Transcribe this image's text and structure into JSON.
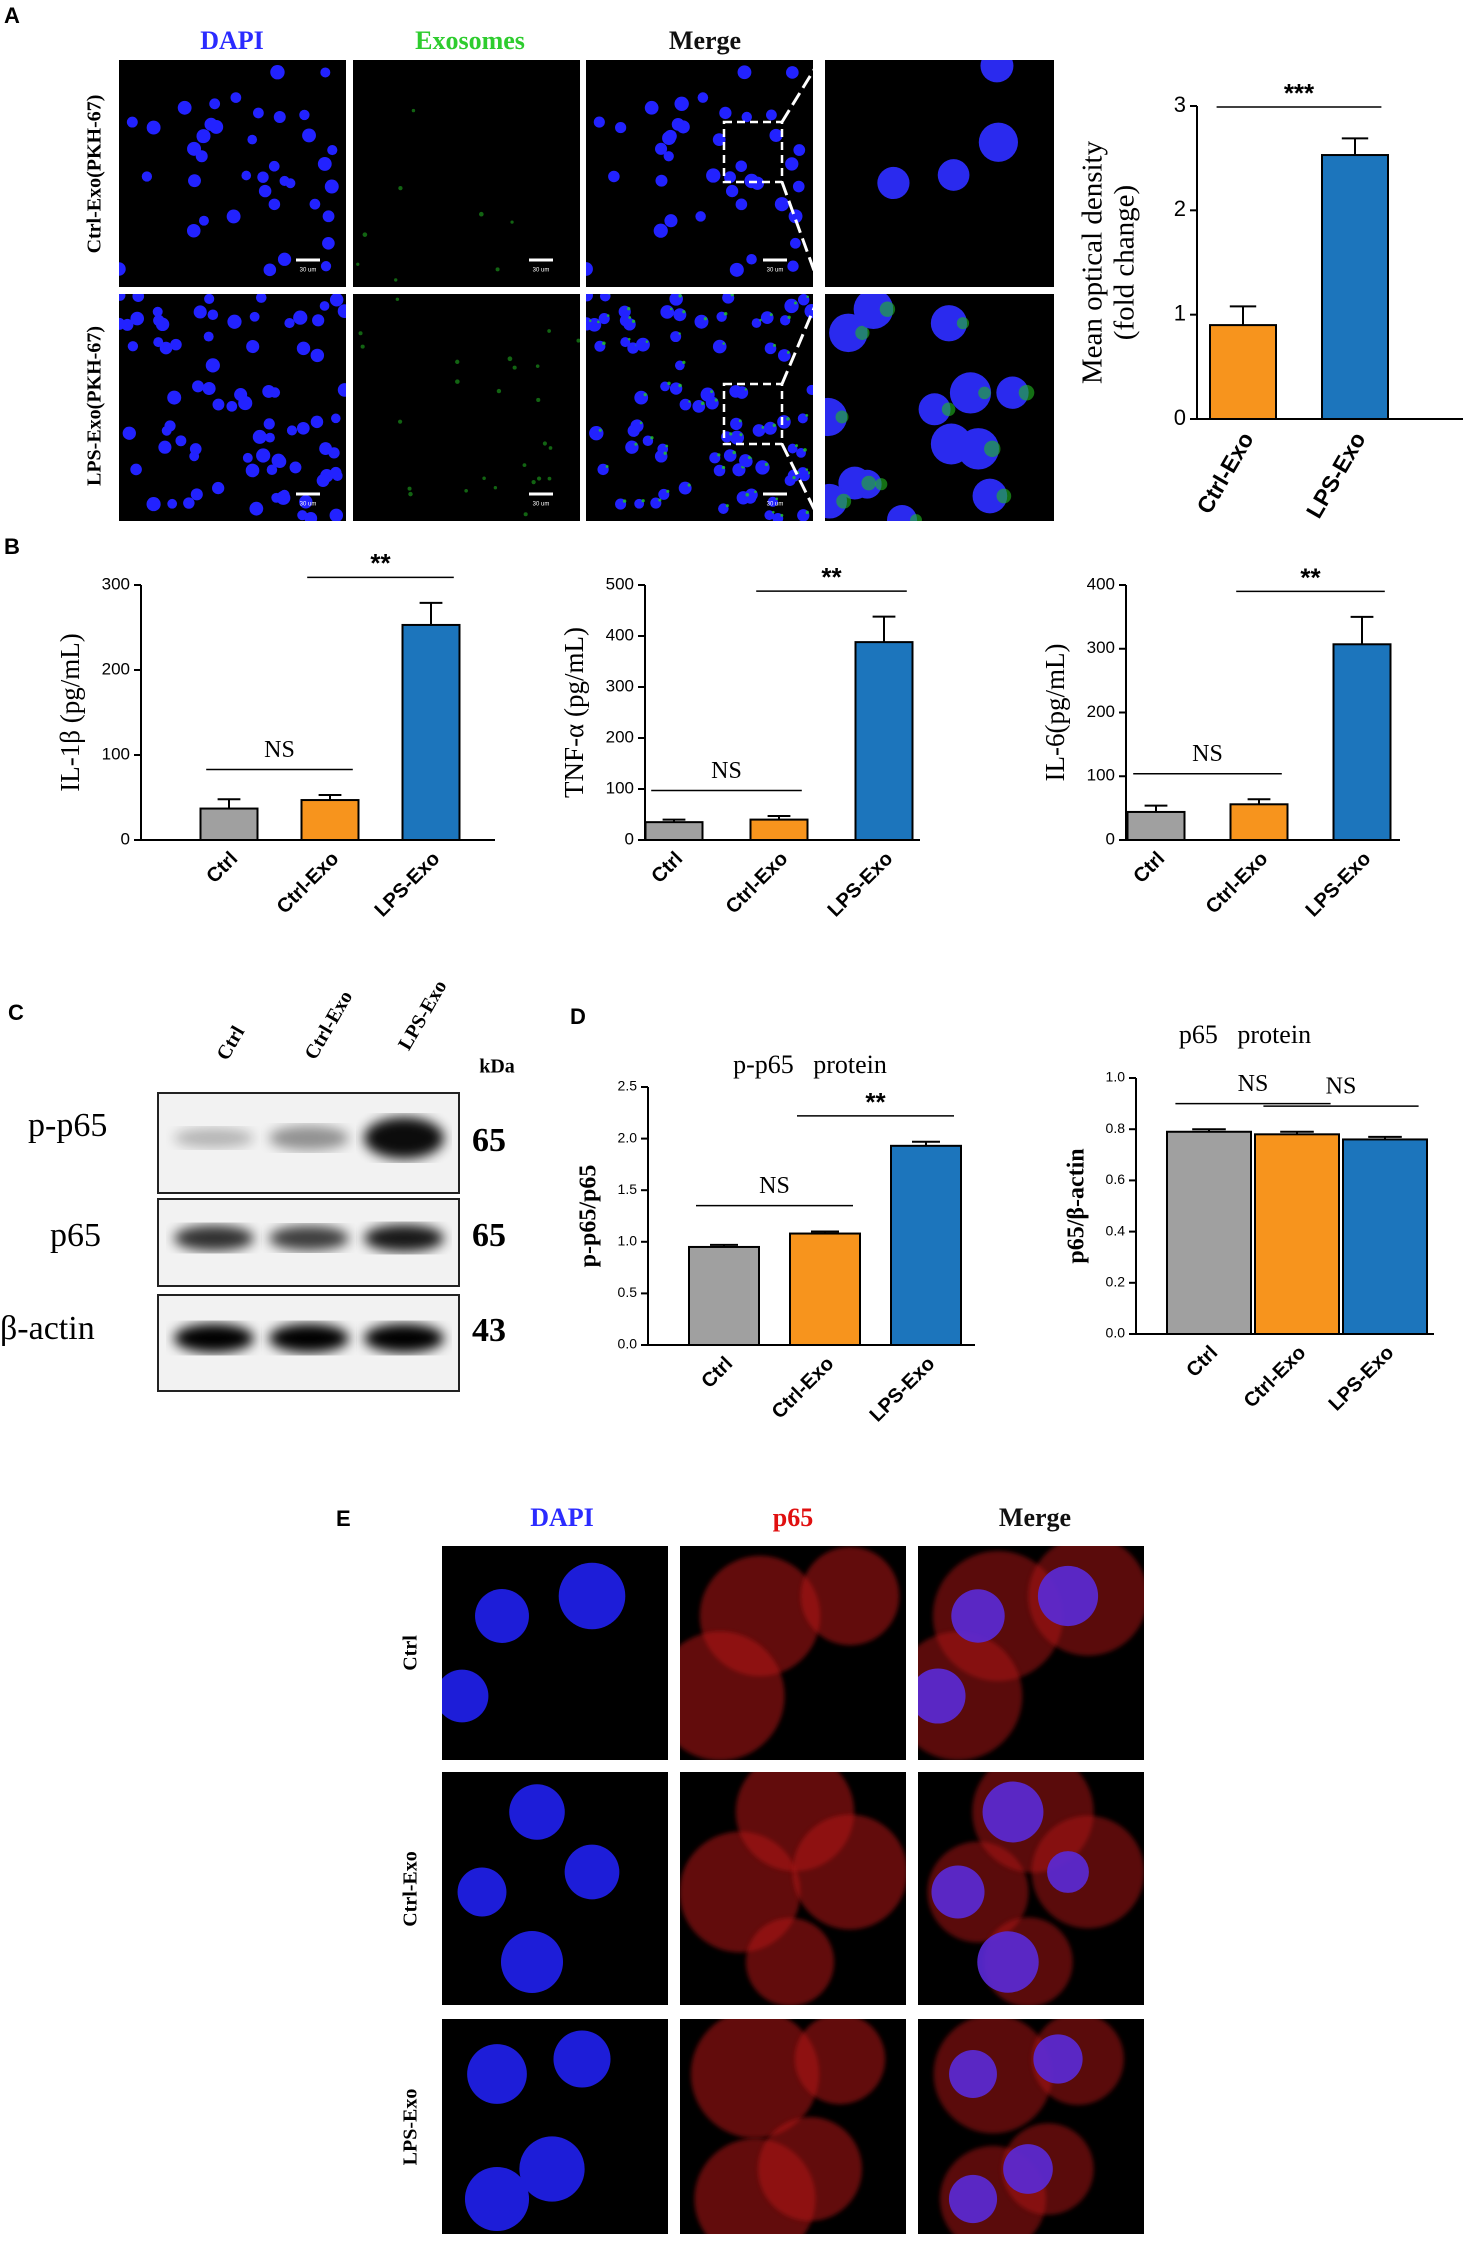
{
  "panel_labels": [
    "A",
    "B",
    "C",
    "D",
    "E"
  ],
  "panel_a": {
    "column_headers": [
      "DAPI",
      "Exosomes",
      "Merge"
    ],
    "row_labels": [
      "Ctrl-Exo(PKH-67)",
      "LPS-Exo(PKH-67)"
    ],
    "scale_bar_label": "30 um"
  },
  "panel_c": {
    "lanes": [
      "Ctrl",
      "Ctrl-Exo",
      "LPS-Exo"
    ],
    "unit_header": "kDa",
    "rows": [
      {
        "label": "p-p65",
        "kda": 65
      },
      {
        "label": "p65",
        "kda": 65
      },
      {
        "label": "β-actin",
        "kda": 43
      }
    ]
  },
  "panel_e": {
    "column_headers": [
      "DAPI",
      "p65",
      "Merge"
    ],
    "row_labels": [
      "Ctrl",
      "Ctrl-Exo",
      "LPS-Exo"
    ]
  },
  "chart_data": [
    {
      "type": "bar",
      "ylabel": [
        "Mean optical density",
        "(fold change)"
      ],
      "categories": [
        "Ctrl-Exo",
        "LPS-Exo"
      ],
      "values": [
        0.9,
        2.53
      ],
      "errors": [
        0.18,
        0.16
      ],
      "colors": [
        "#f7941d",
        "#1c75bc"
      ],
      "ylim": [
        0,
        3
      ],
      "yticks": [
        0,
        1,
        2,
        3
      ],
      "annotations": [
        {
          "text": "***",
          "span": [
            0,
            1
          ]
        }
      ]
    },
    {
      "type": "bar",
      "ylabel": "IL-1β (pg/mL)",
      "categories": [
        "Ctrl",
        "Ctrl-Exo",
        "LPS-Exo"
      ],
      "values": [
        37,
        47,
        253
      ],
      "errors": [
        11,
        6,
        26
      ],
      "colors": [
        "#a0a0a0",
        "#f7941d",
        "#1c75bc"
      ],
      "ylim": [
        0,
        300
      ],
      "yticks": [
        0,
        100,
        200,
        300
      ],
      "annotations": [
        {
          "text": "NS",
          "span": [
            0,
            1
          ]
        },
        {
          "text": "**",
          "span": [
            1,
            2
          ]
        }
      ]
    },
    {
      "type": "bar",
      "ylabel": "TNF-α (pg/mL)",
      "categories": [
        "Ctrl",
        "Ctrl-Exo",
        "LPS-Exo"
      ],
      "values": [
        35,
        40,
        388
      ],
      "errors": [
        5,
        7,
        50
      ],
      "colors": [
        "#a0a0a0",
        "#f7941d",
        "#1c75bc"
      ],
      "ylim": [
        0,
        500
      ],
      "yticks": [
        0,
        100,
        200,
        300,
        400,
        500
      ],
      "annotations": [
        {
          "text": "NS",
          "span": [
            0,
            1
          ]
        },
        {
          "text": "**",
          "span": [
            1,
            2
          ]
        }
      ]
    },
    {
      "type": "bar",
      "ylabel": "IL-6(pg/mL)",
      "categories": [
        "Ctrl",
        "Ctrl-Exo",
        "LPS-Exo"
      ],
      "values": [
        44,
        56,
        307
      ],
      "errors": [
        10,
        8,
        43
      ],
      "colors": [
        "#a0a0a0",
        "#f7941d",
        "#1c75bc"
      ],
      "ylim": [
        0,
        400
      ],
      "yticks": [
        0,
        100,
        200,
        300,
        400
      ],
      "annotations": [
        {
          "text": "NS",
          "span": [
            0,
            1
          ]
        },
        {
          "text": "**",
          "span": [
            1,
            2
          ]
        }
      ]
    },
    {
      "type": "bar",
      "title": "p-p65   protein",
      "ylabel": "p-p65/p65",
      "categories": [
        "Ctrl",
        "Ctrl-Exo",
        "LPS-Exo"
      ],
      "values": [
        0.95,
        1.08,
        1.93
      ],
      "errors": [
        0.02,
        0.02,
        0.04
      ],
      "colors": [
        "#a0a0a0",
        "#f7941d",
        "#1c75bc"
      ],
      "ylim": [
        0,
        2.5
      ],
      "yticks": [
        {
          "value": 0,
          "label": "0.0"
        },
        {
          "value": 0.5,
          "label": "0.5"
        },
        {
          "value": 1,
          "label": "1.0"
        },
        {
          "value": 1.5,
          "label": "1.5"
        },
        {
          "value": 2,
          "label": "2.0"
        },
        {
          "value": 2.5,
          "label": "2.5"
        }
      ],
      "annotations": [
        {
          "text": "NS",
          "span": [
            0,
            1
          ]
        },
        {
          "text": "**",
          "span": [
            1,
            2
          ]
        }
      ]
    },
    {
      "type": "bar",
      "title": "p65   protein",
      "ylabel": "p65/β-actin",
      "categories": [
        "Ctrl",
        "Ctrl-Exo",
        "LPS-Exo"
      ],
      "values": [
        0.79,
        0.78,
        0.76
      ],
      "errors": [
        0.01,
        0.01,
        0.01
      ],
      "colors": [
        "#a0a0a0",
        "#f7941d",
        "#1c75bc"
      ],
      "ylim": [
        0,
        1
      ],
      "yticks": [
        {
          "value": 0,
          "label": "0.0"
        },
        {
          "value": 0.2,
          "label": "0.2"
        },
        {
          "value": 0.4,
          "label": "0.4"
        },
        {
          "value": 0.6,
          "label": "0.6"
        },
        {
          "value": 0.8,
          "label": "0.8"
        },
        {
          "value": 1,
          "label": "1.0"
        }
      ],
      "annotations": [
        {
          "text": "NS",
          "span": [
            0,
            1
          ]
        },
        {
          "text": "NS",
          "span": [
            1,
            2
          ]
        }
      ]
    }
  ]
}
